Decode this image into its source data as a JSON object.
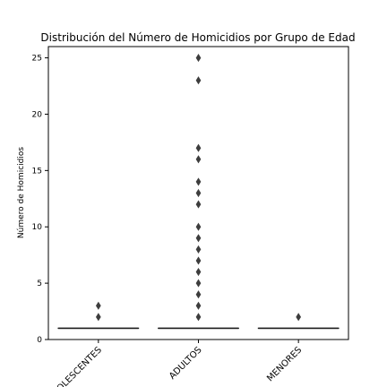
{
  "chart_data": {
    "type": "boxplot",
    "title": "Distribución del Número de Homicidios por Grupo de Edad",
    "xlabel": "",
    "ylabel": "Número de Homicidios",
    "categories": [
      "ADOLESCENTES",
      "ADULTOS",
      "MENORES"
    ],
    "ylim": [
      0,
      26
    ],
    "yticks": [
      0,
      5,
      10,
      15,
      20,
      25
    ],
    "grid": false,
    "boxes": [
      {
        "category": "ADOLESCENTES",
        "min": 1,
        "q1": 1,
        "median": 1,
        "q3": 1,
        "max": 1,
        "outliers": [
          2,
          3
        ]
      },
      {
        "category": "ADULTOS",
        "min": 1,
        "q1": 1,
        "median": 1,
        "q3": 1,
        "max": 1,
        "outliers": [
          2,
          3,
          4,
          5,
          6,
          7,
          8,
          9,
          10,
          12,
          13,
          14,
          16,
          17,
          23,
          25
        ]
      },
      {
        "category": "MENORES",
        "min": 1,
        "q1": 1,
        "median": 1,
        "q3": 1,
        "max": 1,
        "outliers": [
          2
        ]
      }
    ],
    "colors": {
      "box_line": "#1a1a1a",
      "outlier": "#3d3d3d",
      "axis": "#000000"
    }
  }
}
